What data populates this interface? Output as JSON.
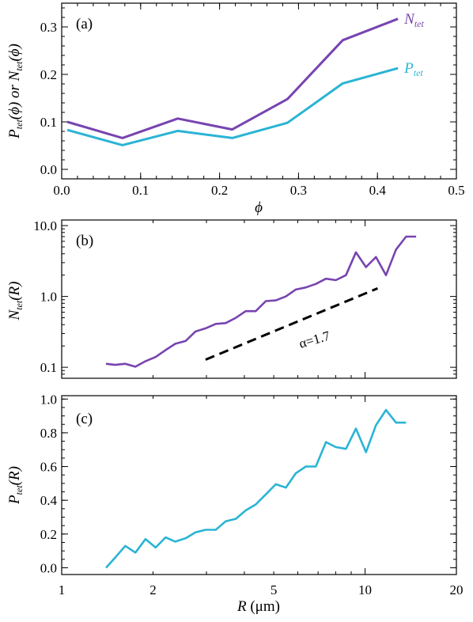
{
  "chart_data": [
    {
      "type": "line",
      "panel_label": "(a)",
      "xlabel": "ϕ",
      "ylabel_parts": [
        "P",
        "tet",
        "(ϕ) or N",
        "tet",
        "(ϕ)"
      ],
      "xlim": [
        0.0,
        0.5
      ],
      "ylim": [
        -0.02,
        0.35
      ],
      "xticks": [
        "0.0",
        "0.1",
        "0.2",
        "0.3",
        "0.4",
        "0.5"
      ],
      "yticks": [
        "0.0",
        "0.1",
        "0.2",
        "0.3"
      ],
      "x": [
        0.007,
        0.077,
        0.147,
        0.216,
        0.286,
        0.356,
        0.426
      ],
      "series": [
        {
          "name": "N",
          "name_sub": "tet",
          "color": "#7744b0",
          "values": [
            0.1,
            0.066,
            0.107,
            0.084,
            0.148,
            0.272,
            0.317
          ]
        },
        {
          "name": "P",
          "name_sub": "tet",
          "color": "#2ab4d4",
          "values": [
            0.083,
            0.051,
            0.081,
            0.066,
            0.098,
            0.181,
            0.213
          ]
        }
      ]
    },
    {
      "type": "line",
      "panel_label": "(b)",
      "xscale": "log",
      "yscale": "log",
      "ylabel_parts": [
        "N",
        "tet",
        "(R)"
      ],
      "xlim": [
        1,
        20
      ],
      "ylim": [
        0.07,
        12
      ],
      "yticks": [
        "0.1",
        "1.0",
        "10.0"
      ],
      "series": [
        {
          "name": "N_tet(R)",
          "color": "#7744b0",
          "x": [
            1.4,
            1.5,
            1.62,
            1.75,
            1.89,
            2.04,
            2.2,
            2.37,
            2.56,
            2.76,
            2.98,
            3.22,
            3.47,
            3.75,
            4.04,
            4.36,
            4.71,
            5.08,
            5.48,
            5.91,
            6.38,
            6.88,
            7.43,
            8.01,
            8.65,
            9.33,
            10.07,
            10.86,
            11.72,
            12.65,
            13.65,
            14.73
          ],
          "values": [
            0.112,
            0.108,
            0.112,
            0.102,
            0.122,
            0.14,
            0.175,
            0.215,
            0.235,
            0.32,
            0.355,
            0.41,
            0.42,
            0.5,
            0.62,
            0.62,
            0.86,
            0.88,
            1.0,
            1.25,
            1.34,
            1.5,
            1.78,
            1.7,
            2.0,
            4.2,
            2.6,
            3.6,
            2.0,
            4.6,
            7.0,
            7.0
          ]
        },
        {
          "name": "fit",
          "color": "#000000",
          "dashed": true,
          "x": [
            2.98,
            11.0
          ],
          "values": [
            0.128,
            1.3
          ]
        }
      ],
      "annotation": "α=1.7"
    },
    {
      "type": "line",
      "panel_label": "(c)",
      "xscale": "log",
      "xlabel_parts": [
        "R",
        " (μm)"
      ],
      "ylabel_parts": [
        "P",
        "tet",
        "(R)"
      ],
      "xlim": [
        1,
        20
      ],
      "ylim": [
        -0.04,
        1.02
      ],
      "xticks": [
        "1",
        "2",
        "5",
        "10",
        "20"
      ],
      "yticks": [
        "0.0",
        "0.2",
        "0.4",
        "0.6",
        "0.8",
        "1.0"
      ],
      "series": [
        {
          "name": "P_tet(R)",
          "color": "#2ab4d4",
          "x": [
            1.4,
            1.5,
            1.62,
            1.75,
            1.89,
            2.04,
            2.2,
            2.37,
            2.56,
            2.76,
            2.98,
            3.22,
            3.47,
            3.75,
            4.04,
            4.36,
            4.71,
            5.08,
            5.48,
            5.91,
            6.38,
            6.88,
            7.43,
            8.01,
            8.65,
            9.33,
            10.07,
            10.86,
            11.72,
            12.65,
            13.65
          ],
          "values": [
            0.0,
            0.06,
            0.13,
            0.09,
            0.17,
            0.12,
            0.18,
            0.155,
            0.175,
            0.21,
            0.225,
            0.225,
            0.275,
            0.29,
            0.34,
            0.375,
            0.435,
            0.495,
            0.475,
            0.56,
            0.6,
            0.6,
            0.745,
            0.715,
            0.705,
            0.825,
            0.685,
            0.845,
            0.935,
            0.86,
            0.86
          ]
        }
      ]
    }
  ]
}
